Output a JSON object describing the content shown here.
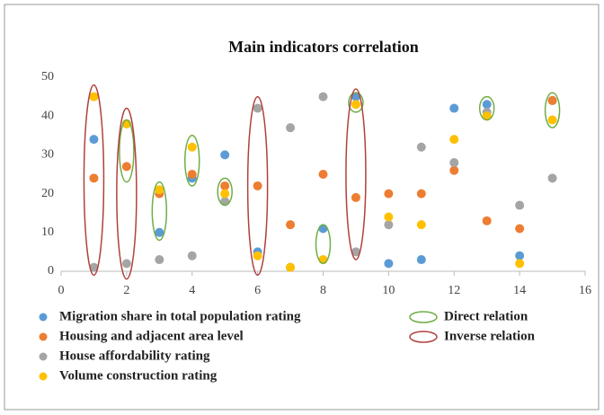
{
  "chart_data": {
    "type": "scatter",
    "title": "Main indicators correlation",
    "xlim": [
      0,
      16
    ],
    "xticks": [
      0,
      2,
      4,
      6,
      8,
      10,
      12,
      14,
      16
    ],
    "ylim": [
      0,
      50
    ],
    "yticks": [
      0,
      10,
      20,
      30,
      40,
      50
    ],
    "grid": false,
    "x": [
      1,
      2,
      3,
      4,
      5,
      6,
      7,
      8,
      9,
      10,
      11,
      12,
      13,
      14,
      15
    ],
    "series": [
      {
        "name": "Migration share in total population rating",
        "color": "#5b9bd5",
        "values": [
          34,
          38,
          10,
          24,
          30,
          5,
          1,
          11,
          45,
          2,
          3,
          42,
          43,
          4,
          44
        ]
      },
      {
        "name": "Housing and adjacent area level",
        "color": "#ed7d31",
        "values": [
          24,
          27,
          20,
          25,
          22,
          22,
          12,
          25,
          19,
          20,
          20,
          26,
          13,
          11,
          44
        ]
      },
      {
        "name": "House affordability rating",
        "color": "#a5a5a5",
        "values": [
          1,
          2,
          3,
          4,
          18,
          42,
          37,
          45,
          5,
          12,
          32,
          28,
          41,
          17,
          24
        ]
      },
      {
        "name": "Volume construction rating",
        "color": "#ffc000",
        "values": [
          45,
          38,
          21,
          32,
          20,
          4,
          1,
          3,
          43,
          14,
          12,
          34,
          40,
          2,
          39
        ]
      }
    ],
    "relations": [
      {
        "name": "Direct relation",
        "color": "#70ad47",
        "x": [
          2,
          3,
          4,
          5,
          8,
          9,
          13,
          15
        ],
        "ymin": [
          23,
          8,
          22,
          17,
          2,
          41,
          39,
          37
        ],
        "ymax": [
          39,
          23,
          35,
          24,
          12,
          46,
          45,
          46
        ]
      },
      {
        "name": "Inverse relation",
        "color": "#b0413e",
        "x": [
          1,
          2,
          6,
          9
        ],
        "ymin": [
          -1,
          -2,
          -1,
          3
        ],
        "ymax": [
          48,
          42,
          45,
          47
        ]
      }
    ]
  }
}
